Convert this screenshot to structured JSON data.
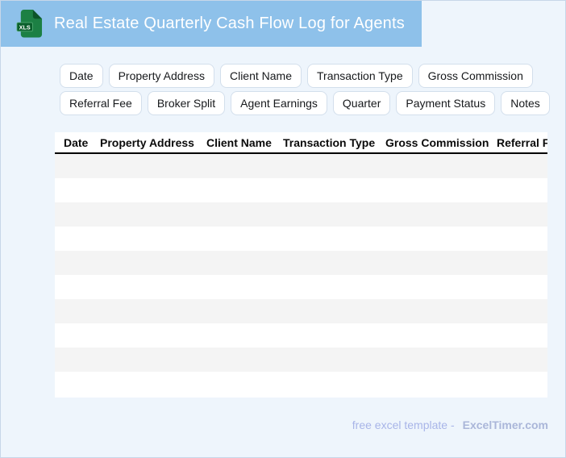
{
  "header": {
    "title": "Real Estate Quarterly Cash Flow Log for Agents",
    "icon_label": "XLS"
  },
  "chips": {
    "row1": [
      "Date",
      "Property Address",
      "Client Name",
      "Transaction Type",
      "Gross Commission"
    ],
    "row2": [
      "Referral Fee",
      "Broker Split",
      "Agent Earnings",
      "Quarter",
      "Payment Status",
      "Notes"
    ]
  },
  "table": {
    "columns": [
      "Date",
      "Property Address",
      "Client Name",
      "Transaction Type",
      "Gross Commission",
      "Referral Fee"
    ],
    "row_count": 10
  },
  "footer": {
    "tagline": "free excel template -",
    "brand": "ExcelTimer.com"
  },
  "colors": {
    "titlebar_bg": "#8ec1ea",
    "page_bg": "#eef5fc",
    "icon_green": "#1c8044",
    "icon_green_dark": "#0a5f2c",
    "row_stripe": "#f4f4f4",
    "footer_text": "#a8b5e8"
  }
}
